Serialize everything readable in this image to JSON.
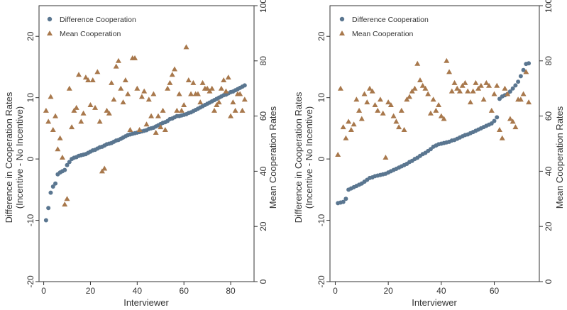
{
  "colors": {
    "difference": "#5a7690",
    "mean": "#a8784c",
    "axis": "#333333"
  },
  "chart_data": [
    {
      "type": "scatter",
      "title": "",
      "xlabel": "Interviewer",
      "ylabel": "Difference in Cooperation Rates",
      "ylabel2": "(Incentive - No Incentive)",
      "y2label": "Mean Cooperation Rates",
      "xlim": [
        -2,
        90
      ],
      "ylim": [
        -20,
        25
      ],
      "y2lim": [
        0,
        100
      ],
      "xticks": [
        "0",
        "20",
        "40",
        "60",
        "80"
      ],
      "yticks": [
        "-20",
        "-10",
        "0",
        "10",
        "20"
      ],
      "y2ticks": [
        "0",
        "20",
        "40",
        "60",
        "80",
        "100"
      ],
      "legend": {
        "position": "top-left",
        "entries": [
          "Difference Cooperation",
          "Mean Cooperation"
        ]
      },
      "series": [
        {
          "name": "Difference Cooperation",
          "axis": "left",
          "marker": "circle",
          "x": [
            1,
            2,
            3,
            4,
            5,
            6,
            7,
            8,
            9,
            10,
            11,
            12,
            13,
            14,
            15,
            16,
            17,
            18,
            19,
            20,
            21,
            22,
            23,
            24,
            25,
            26,
            27,
            28,
            29,
            30,
            31,
            32,
            33,
            34,
            35,
            36,
            37,
            38,
            39,
            40,
            41,
            42,
            43,
            44,
            45,
            46,
            47,
            48,
            49,
            50,
            51,
            52,
            53,
            54,
            55,
            56,
            57,
            58,
            59,
            60,
            61,
            62,
            63,
            64,
            65,
            66,
            67,
            68,
            69,
            70,
            71,
            72,
            73,
            74,
            75,
            76,
            77,
            78,
            79,
            80,
            81,
            82,
            83,
            84,
            85,
            86
          ],
          "y": [
            -10,
            -8,
            -5.5,
            -4.5,
            -4,
            -2.5,
            -2.2,
            -2,
            -1.8,
            -1,
            -0.5,
            0,
            0.2,
            0.3,
            0.5,
            0.6,
            0.7,
            0.8,
            1,
            1.2,
            1.4,
            1.5,
            1.7,
            1.9,
            2,
            2.2,
            2.4,
            2.5,
            2.6,
            2.8,
            3,
            3.1,
            3.3,
            3.5,
            3.7,
            3.9,
            4,
            4.1,
            4.2,
            4.3,
            4.4,
            4.5,
            4.6,
            4.7,
            4.9,
            5,
            5.1,
            5.3,
            5.5,
            5.7,
            5.9,
            6,
            6.2,
            6.5,
            6.6,
            6.8,
            7,
            7,
            7.1,
            7.2,
            7.3,
            7.5,
            7.6,
            7.8,
            8,
            8.2,
            8.4,
            8.6,
            8.8,
            9,
            9.2,
            9.4,
            9.6,
            9.8,
            10,
            10.2,
            10.4,
            10.5,
            10.7,
            10.9,
            11,
            11.2,
            11.4,
            11.6,
            11.8,
            12
          ]
        },
        {
          "name": "Mean Cooperation",
          "axis": "right",
          "marker": "triangle",
          "x": [
            1,
            2,
            3,
            4,
            5,
            6,
            7,
            8,
            9,
            10,
            11,
            12,
            13,
            14,
            15,
            16,
            17,
            18,
            19,
            20,
            21,
            22,
            23,
            24,
            25,
            26,
            27,
            28,
            29,
            30,
            31,
            32,
            33,
            34,
            35,
            36,
            37,
            38,
            39,
            40,
            41,
            42,
            43,
            44,
            45,
            46,
            47,
            48,
            49,
            50,
            51,
            52,
            53,
            54,
            55,
            56,
            57,
            58,
            59,
            60,
            61,
            62,
            63,
            64,
            65,
            66,
            67,
            68,
            69,
            70,
            71,
            72,
            73,
            74,
            75,
            76,
            77,
            78,
            79,
            80,
            81,
            82,
            83,
            84,
            85,
            86
          ],
          "y": [
            62,
            58,
            67,
            55,
            60,
            48,
            52,
            45,
            28,
            30,
            70,
            56,
            62,
            63,
            75,
            58,
            61,
            74,
            73,
            64,
            73,
            63,
            76,
            58,
            40,
            41,
            62,
            61,
            72,
            66,
            78,
            80,
            70,
            65,
            73,
            68,
            55,
            81,
            81,
            70,
            55,
            67,
            69,
            57,
            66,
            60,
            68,
            54,
            60,
            56,
            62,
            55,
            70,
            72,
            75,
            77,
            62,
            68,
            62,
            64,
            85,
            73,
            68,
            72,
            68,
            68,
            65,
            72,
            70,
            70,
            69,
            70,
            62,
            64,
            65,
            70,
            73,
            69,
            74,
            60,
            65,
            62,
            68,
            68,
            62,
            66
          ]
        }
      ]
    },
    {
      "type": "scatter",
      "title": "",
      "xlabel": "Interviewer",
      "ylabel": "Difference in Cooperation Rates",
      "ylabel2": "(Incentive - No Incentive)",
      "y2label": "Mean Cooperation Rates",
      "xlim": [
        -2,
        77
      ],
      "ylim": [
        -20,
        25
      ],
      "y2lim": [
        0,
        100
      ],
      "xticks": [
        "0",
        "20",
        "40",
        "60"
      ],
      "yticks": [
        "-20",
        "-10",
        "0",
        "10",
        "20"
      ],
      "y2ticks": [
        "0",
        "20",
        "40",
        "60",
        "80",
        "100"
      ],
      "legend": {
        "position": "top-left",
        "entries": [
          "Difference Cooperation",
          "Mean Cooperation"
        ]
      },
      "series": [
        {
          "name": "Difference Cooperation",
          "axis": "left",
          "marker": "circle",
          "x": [
            1,
            2,
            3,
            4,
            5,
            6,
            7,
            8,
            9,
            10,
            11,
            12,
            13,
            14,
            15,
            16,
            17,
            18,
            19,
            20,
            21,
            22,
            23,
            24,
            25,
            26,
            27,
            28,
            29,
            30,
            31,
            32,
            33,
            34,
            35,
            36,
            37,
            38,
            39,
            40,
            41,
            42,
            43,
            44,
            45,
            46,
            47,
            48,
            49,
            50,
            51,
            52,
            53,
            54,
            55,
            56,
            57,
            58,
            59,
            60,
            61,
            62,
            63,
            64,
            65,
            66,
            67,
            68,
            69,
            70,
            71,
            72,
            73
          ],
          "y": [
            -7.2,
            -7.1,
            -7,
            -6.5,
            -5,
            -4.8,
            -4.6,
            -4.4,
            -4.2,
            -4,
            -3.7,
            -3.4,
            -3.1,
            -3,
            -2.8,
            -2.7,
            -2.6,
            -2.5,
            -2.4,
            -2.2,
            -2,
            -1.8,
            -1.6,
            -1.4,
            -1.2,
            -1,
            -0.8,
            -0.5,
            -0.3,
            0,
            0.2,
            0.5,
            0.8,
            1,
            1.3,
            1.6,
            2,
            2.2,
            2.4,
            2.5,
            2.6,
            2.7,
            2.8,
            3,
            3.1,
            3.3,
            3.5,
            3.7,
            3.9,
            4,
            4.2,
            4.4,
            4.6,
            4.8,
            5,
            5.2,
            5.4,
            5.6,
            5.8,
            6.2,
            6.8,
            9.8,
            10.2,
            10.4,
            10.6,
            11,
            11.5,
            12,
            12.6,
            13.5,
            14.5,
            15.5,
            15.6
          ]
        },
        {
          "name": "Mean Cooperation",
          "axis": "right",
          "marker": "triangle",
          "x": [
            1,
            2,
            3,
            4,
            5,
            6,
            7,
            8,
            9,
            10,
            11,
            12,
            13,
            14,
            15,
            16,
            17,
            18,
            19,
            20,
            21,
            22,
            23,
            24,
            25,
            26,
            27,
            28,
            29,
            30,
            31,
            32,
            33,
            34,
            35,
            36,
            37,
            38,
            39,
            40,
            41,
            42,
            43,
            44,
            45,
            46,
            47,
            48,
            49,
            50,
            51,
            52,
            53,
            54,
            55,
            56,
            57,
            58,
            59,
            60,
            61,
            62,
            63,
            64,
            65,
            66,
            67,
            68,
            69,
            70,
            71,
            72,
            73
          ],
          "y": [
            46,
            70,
            56,
            52,
            58,
            55,
            57,
            66,
            62,
            59,
            68,
            65,
            70,
            69,
            64,
            62,
            66,
            61,
            45,
            65,
            64,
            60,
            58,
            56,
            62,
            55,
            66,
            67,
            69,
            70,
            79,
            73,
            71,
            70,
            68,
            61,
            66,
            62,
            64,
            60,
            59,
            80,
            76,
            69,
            72,
            70,
            69,
            71,
            72,
            69,
            65,
            69,
            72,
            70,
            71,
            66,
            72,
            71,
            62,
            68,
            71,
            55,
            52,
            70,
            68,
            59,
            58,
            56,
            66,
            66,
            68,
            76,
            65
          ]
        }
      ]
    }
  ]
}
